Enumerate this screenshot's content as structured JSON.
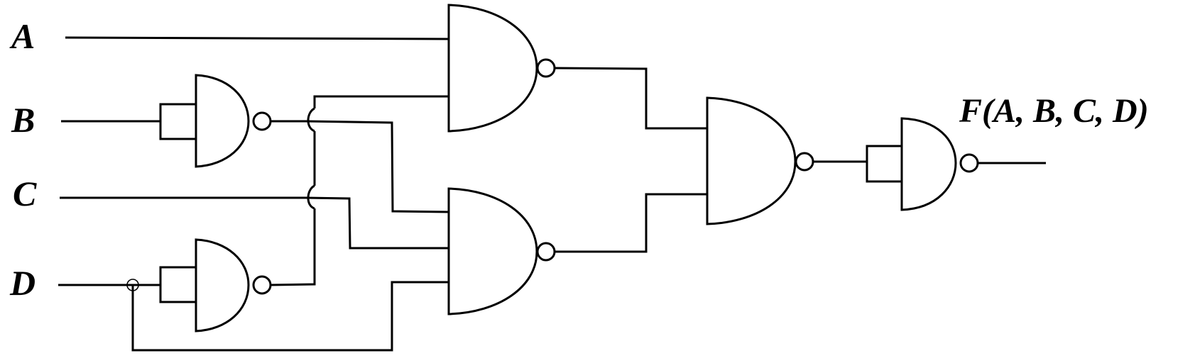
{
  "inputs": {
    "a": "A",
    "b": "B",
    "c": "C",
    "d": "D"
  },
  "output": {
    "label": "F(A, B, C, D)"
  },
  "colors": {
    "stroke": "#000000",
    "background": "#ffffff"
  }
}
